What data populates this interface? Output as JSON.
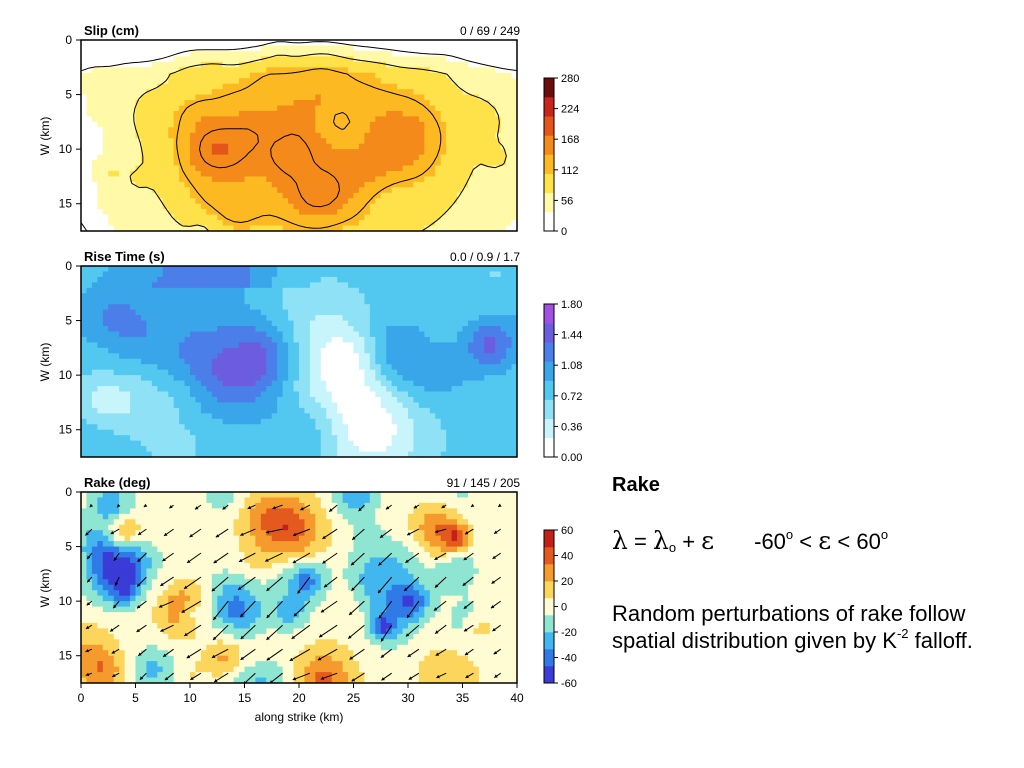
{
  "chart_data": [
    {
      "type": "heatmap",
      "title": "Slip (cm)",
      "stats_label": "0 / 69 / 249",
      "ylabel": "W (km)",
      "xlim": [
        0,
        40
      ],
      "ylim": [
        0,
        17.5
      ],
      "y_ticks": [
        "0",
        "5",
        "10",
        "15"
      ],
      "colorbar": {
        "ticks": [
          "280",
          "224",
          "168",
          "112",
          "56",
          "0"
        ],
        "min": 0,
        "max": 280
      },
      "colormap": [
        "#ffffff",
        "#fff9a8",
        "#ffe14a",
        "#fdb922",
        "#f38a1a",
        "#e4551b",
        "#c8251c",
        "#6b0d0d"
      ],
      "contours": true,
      "min": 0,
      "mean": 69,
      "max": 249
    },
    {
      "type": "heatmap",
      "title": "Rise Time (s)",
      "stats_label": "0.0 / 0.9 / 1.7",
      "ylabel": "W (km)",
      "xlim": [
        0,
        40
      ],
      "ylim": [
        0,
        17.5
      ],
      "y_ticks": [
        "0",
        "5",
        "10",
        "15"
      ],
      "colorbar": {
        "ticks": [
          "1.80",
          "1.44",
          "1.08",
          "0.72",
          "0.36",
          "0.00"
        ],
        "min": 0,
        "max": 1.8
      },
      "colormap": [
        "#ffffff",
        "#c8f4fb",
        "#8fe2f6",
        "#52c8f1",
        "#3aa6ea",
        "#4b7ee8",
        "#6c5cdf",
        "#a24fe3"
      ],
      "min": 0.0,
      "mean": 0.9,
      "max": 1.7
    },
    {
      "type": "heatmap",
      "title": "Rake (deg)",
      "stats_label": "91 / 145 / 205",
      "ylabel": "W (km)",
      "xlabel": "along strike (km)",
      "xlim": [
        0,
        40
      ],
      "ylim": [
        0,
        17.5
      ],
      "x_ticks": [
        "0",
        "5",
        "10",
        "15",
        "20",
        "25",
        "30",
        "35",
        "40"
      ],
      "y_ticks": [
        "0",
        "5",
        "10",
        "15"
      ],
      "colorbar": {
        "ticks": [
          "60",
          "40",
          "20",
          "0",
          "-20",
          "-40",
          "-60"
        ],
        "min": -60,
        "max": 60
      },
      "colormap": [
        "#3b3bd8",
        "#2f7ae6",
        "#42b7ef",
        "#8ee6d2",
        "#fffbd2",
        "#fbd55c",
        "#f59a2c",
        "#e45a1e",
        "#c4201a"
      ],
      "vectors": true,
      "min": 91,
      "mean": 145,
      "max": 205
    }
  ],
  "side_panel": {
    "heading": "Rake",
    "formula": {
      "lambda": "λ",
      "equals": "=",
      "lambda0": "λ",
      "subscript": "o",
      "plus": "+",
      "epsilon": "ε",
      "left_bound": "-60",
      "degree": "o",
      "lt": "<",
      "right_bound": "60"
    },
    "description_main": "Random perturbations of rake follow spatial distribution given by K",
    "description_exp": "-2",
    "description_tail": " falloff."
  }
}
